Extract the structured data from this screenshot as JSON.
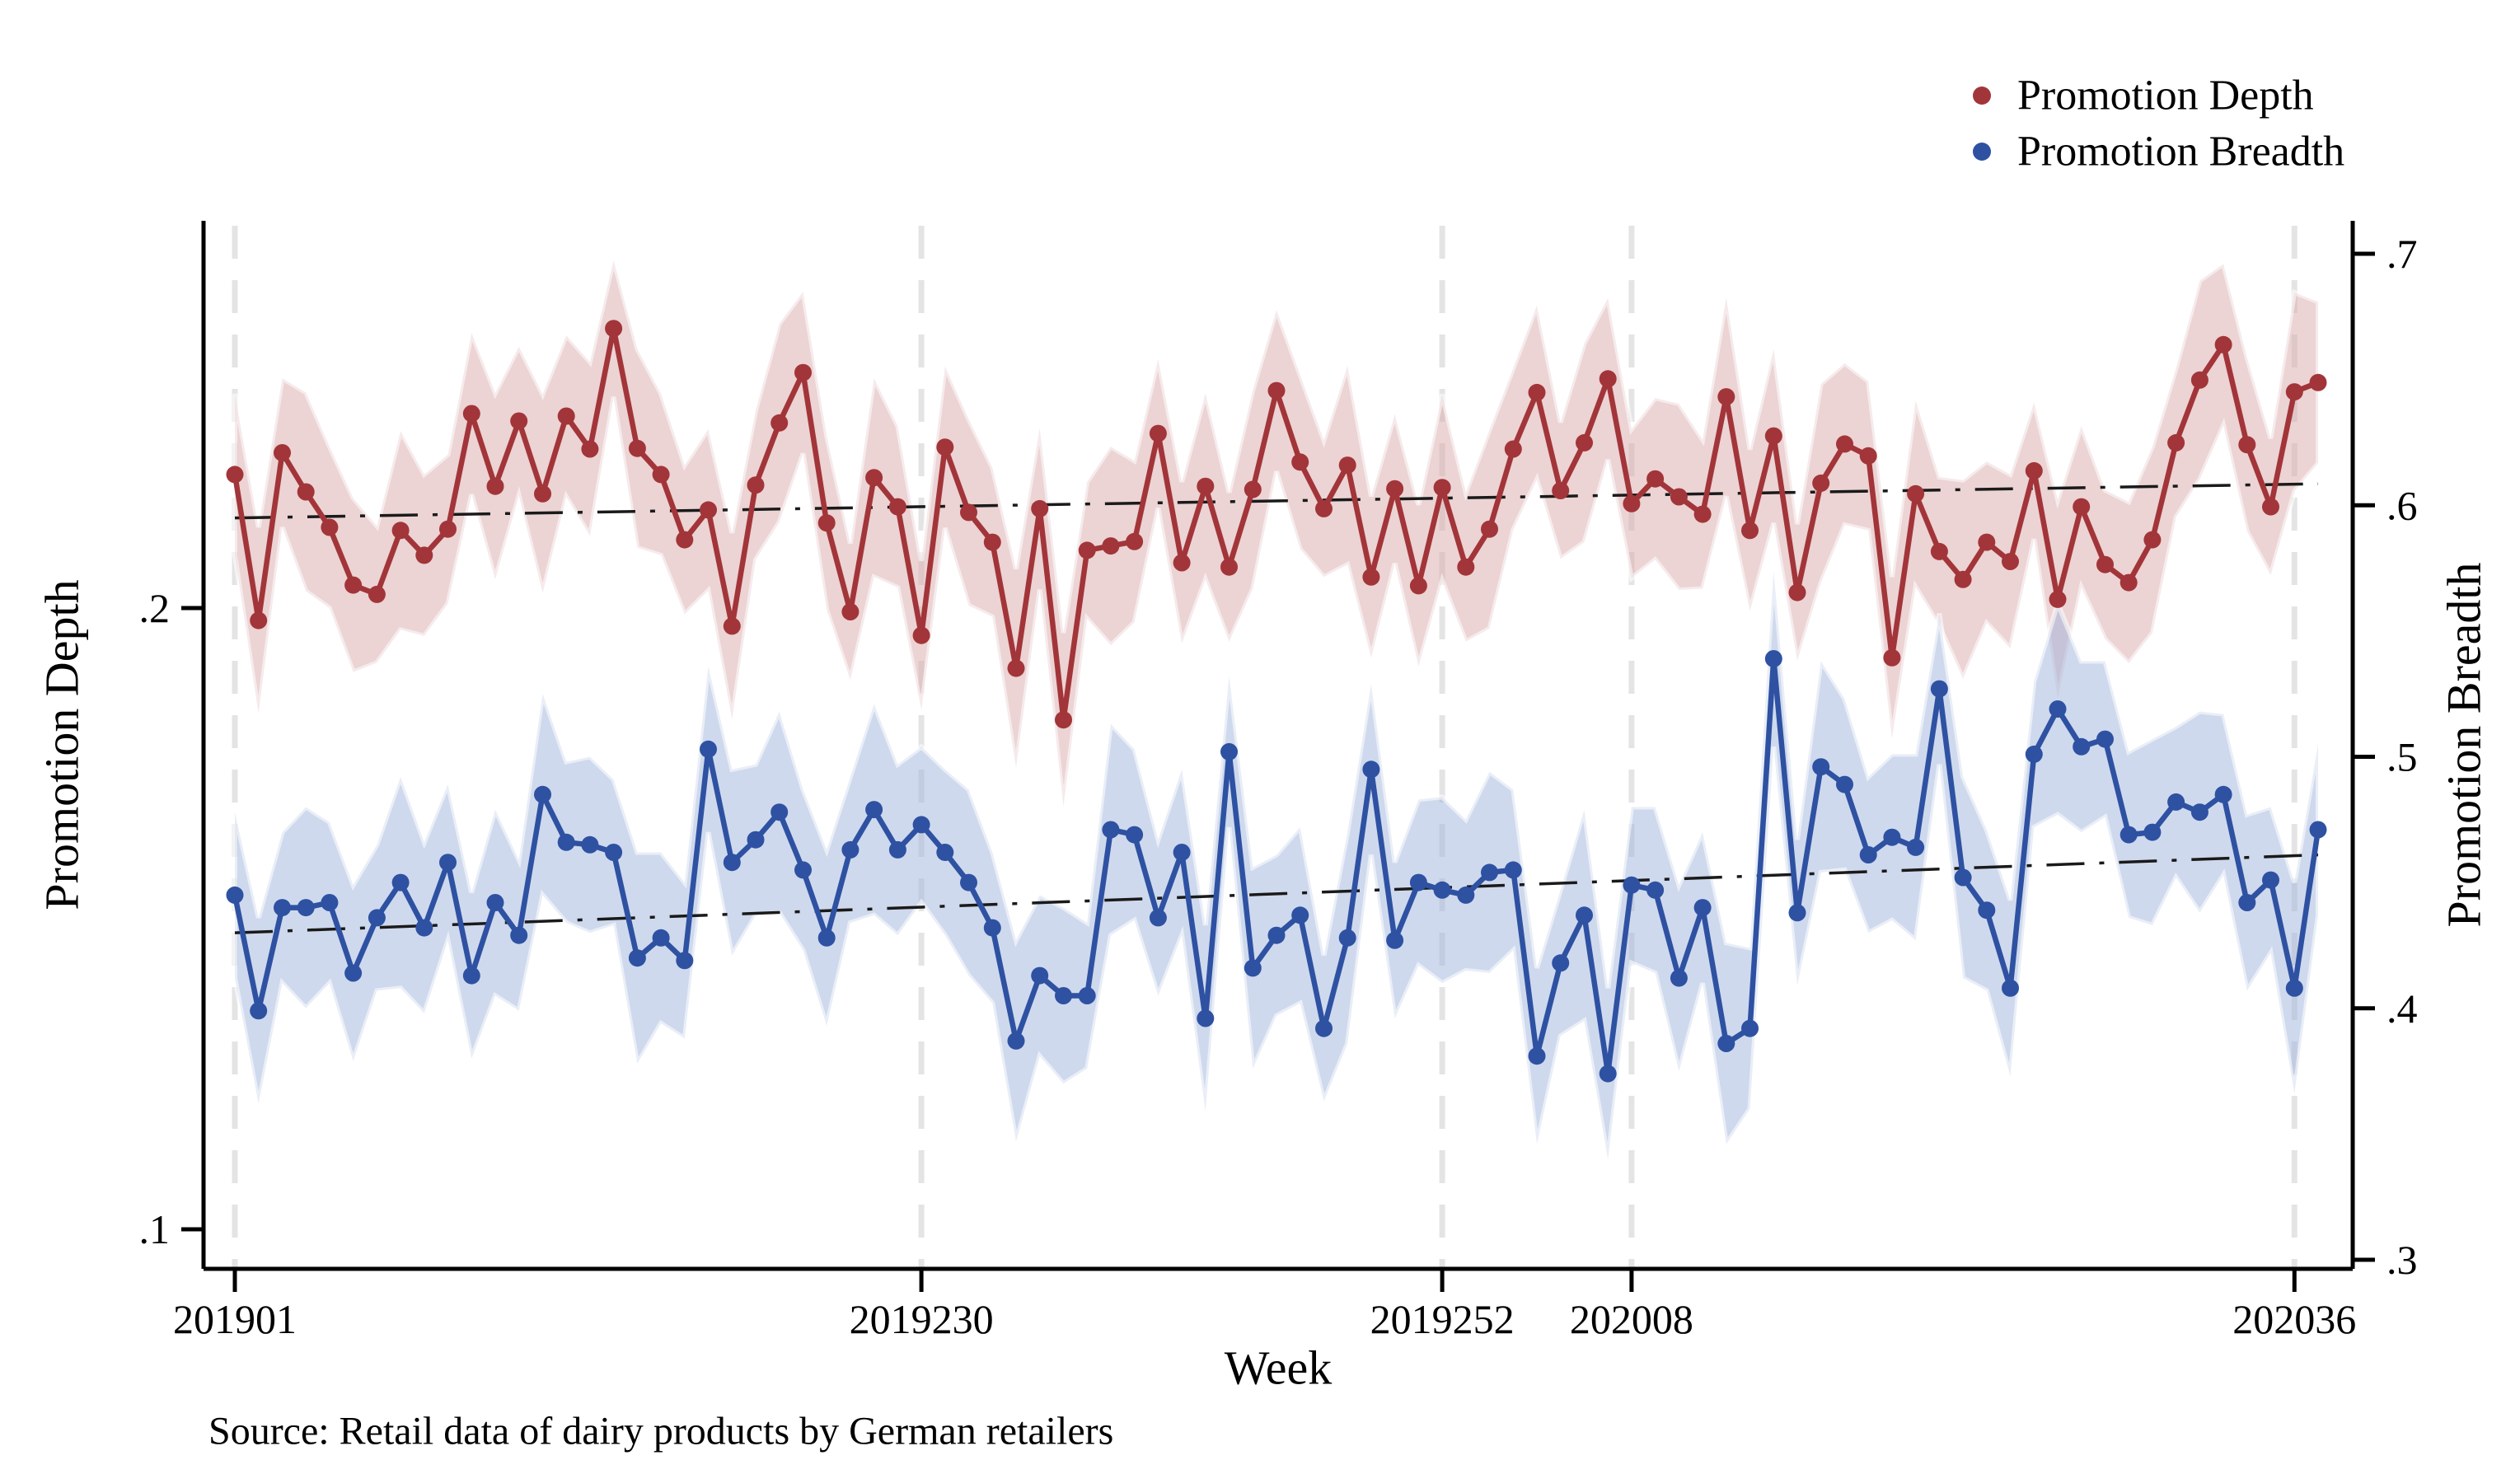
{
  "source_note": "Source: Retail data of dairy products by German retailers",
  "legend": {
    "items": [
      {
        "label": "Promotion Depth",
        "color": "#A23539"
      },
      {
        "label": "Promotion Breadth",
        "color": "#2E51A2"
      }
    ]
  },
  "axes": {
    "x": {
      "title": "Week",
      "tick_labels": [
        "201901",
        "2019230",
        "2019252",
        "202008",
        "202036"
      ],
      "tick_indices": [
        0,
        29,
        51,
        59,
        87
      ]
    },
    "y_left": {
      "title": "Promotion Depth",
      "tick_values": [
        0.2,
        0.1
      ],
      "tick_labels": [
        ".2",
        ".1"
      ]
    },
    "y_right": {
      "title": "Promotion Breadth",
      "tick_values": [
        0.7,
        0.6,
        0.5,
        0.4,
        0.3
      ],
      "tick_labels": [
        ".7",
        ".6",
        ".5",
        ".4",
        ".3"
      ]
    }
  },
  "chart_data": {
    "type": "line",
    "title": "",
    "xlabel": "Week",
    "n_points": 89,
    "x_axis_note": "89 consecutive weeks from 201901 to one week past 202036; labeled ticks at point indices 0,29,51,59,87",
    "grid": "vertical dashed gridlines at x ticks",
    "legend_position": "top-right",
    "y_left_range_shown": [
      0.1,
      0.2
    ],
    "y_right_range_shown": [
      0.3,
      0.7
    ],
    "series": [
      {
        "name": "Promotion Depth",
        "axis": "left",
        "line_color": "#A23539",
        "band_color": "#D9A7AA",
        "values": [
          0.2215,
          0.198,
          0.225,
          0.2187,
          0.213,
          0.2037,
          0.2022,
          0.2125,
          0.2085,
          0.2127,
          0.2313,
          0.2196,
          0.2301,
          0.2184,
          0.2309,
          0.2256,
          0.245,
          0.2257,
          0.2215,
          0.211,
          0.2158,
          0.1971,
          0.2198,
          0.2298,
          0.2379,
          0.2137,
          0.1994,
          0.221,
          0.2163,
          0.1956,
          0.2259,
          0.2154,
          0.2106,
          0.1903,
          0.216,
          0.182,
          0.2093,
          0.21,
          0.2107,
          0.2281,
          0.2073,
          0.2196,
          0.2066,
          0.2191,
          0.235,
          0.2235,
          0.216,
          0.223,
          0.205,
          0.2192,
          0.2036,
          0.2194,
          0.2066,
          0.2127,
          0.2256,
          0.2347,
          0.2189,
          0.2266,
          0.2369,
          0.2168,
          0.2208,
          0.2179,
          0.2151,
          0.234,
          0.2125,
          0.2277,
          0.2025,
          0.2201,
          0.2264,
          0.2245,
          0.192,
          0.2184,
          0.2091,
          0.2046,
          0.2106,
          0.2075,
          0.2221,
          0.2014,
          0.2163,
          0.207,
          0.2041,
          0.211,
          0.2266,
          0.2367,
          0.2424,
          0.2263,
          0.2163,
          0.2348,
          0.2363
        ],
        "band_halfwidth_cycle": [
          0.013,
          0.015,
          0.012,
          0.016,
          0.013,
          0.014,
          0.011,
          0.016,
          0.013,
          0.012
        ],
        "trend_line": {
          "style": "dash-dot",
          "start_value": 0.2145,
          "end_value": 0.22
        }
      },
      {
        "name": "Promotion Breadth",
        "axis": "right",
        "line_color": "#2E51A2",
        "band_color": "#9FB3DB",
        "values": [
          0.445,
          0.399,
          0.44,
          0.44,
          0.442,
          0.414,
          0.436,
          0.45,
          0.432,
          0.458,
          0.413,
          0.442,
          0.429,
          0.485,
          0.466,
          0.465,
          0.462,
          0.42,
          0.428,
          0.419,
          0.503,
          0.458,
          0.467,
          0.478,
          0.455,
          0.428,
          0.463,
          0.479,
          0.463,
          0.473,
          0.462,
          0.45,
          0.432,
          0.387,
          0.413,
          0.405,
          0.405,
          0.471,
          0.469,
          0.436,
          0.462,
          0.396,
          0.502,
          0.416,
          0.429,
          0.437,
          0.392,
          0.428,
          0.495,
          0.427,
          0.45,
          0.447,
          0.445,
          0.454,
          0.455,
          0.381,
          0.418,
          0.437,
          0.374,
          0.449,
          0.447,
          0.412,
          0.44,
          0.386,
          0.392,
          0.539,
          0.438,
          0.496,
          0.489,
          0.461,
          0.468,
          0.464,
          0.527,
          0.452,
          0.439,
          0.408,
          0.501,
          0.519,
          0.504,
          0.507,
          0.469,
          0.47,
          0.482,
          0.478,
          0.485,
          0.442,
          0.451,
          0.408,
          0.471
        ],
        "band_halfwidth_cycle": [
          0.033,
          0.037,
          0.03,
          0.04,
          0.032,
          0.035,
          0.029,
          0.042,
          0.034,
          0.031
        ],
        "trend_line": {
          "style": "dash-dot",
          "start_value": 0.43,
          "end_value": 0.461
        }
      }
    ]
  },
  "style": {
    "background": "#FFFFFF",
    "gridline_color": "#E4E4E4",
    "axis_color": "#000000",
    "trend_color": "#1A1A1A"
  }
}
